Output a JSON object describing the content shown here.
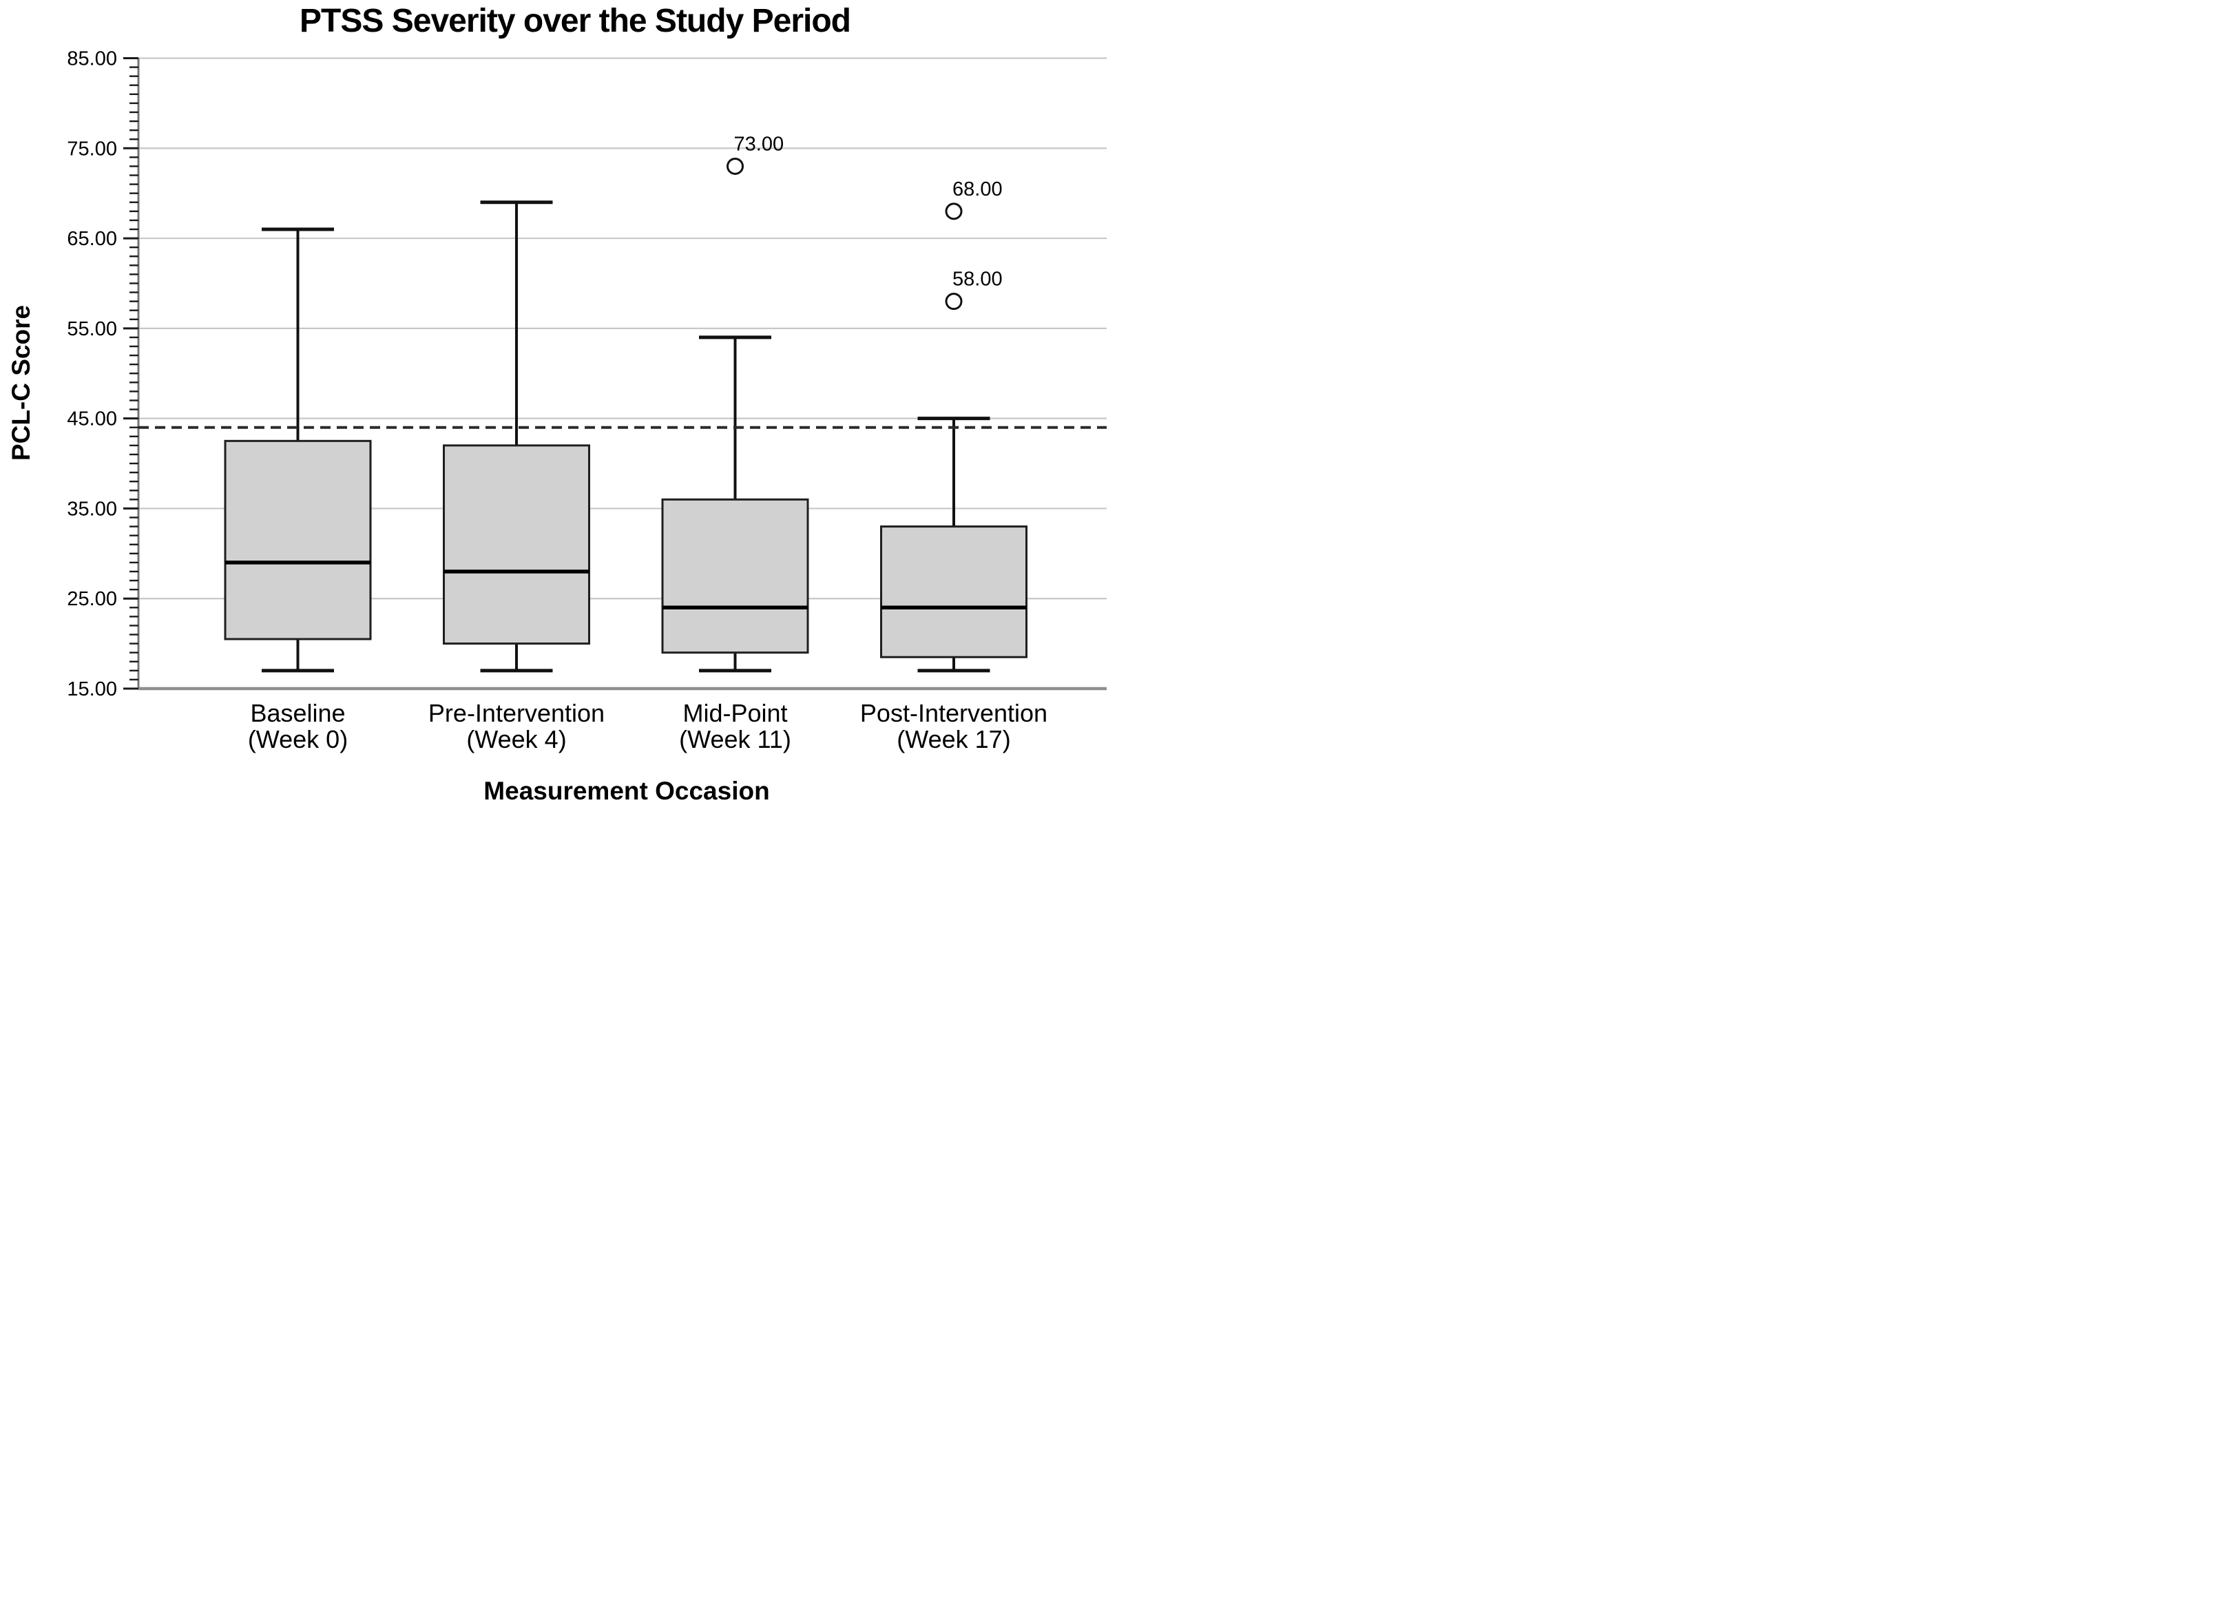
{
  "chart_data": {
    "type": "box",
    "title": "PTSS Severity over the Study Period",
    "xlabel": "Measurement Occasion",
    "ylabel": "PCL-C Score",
    "ylim": [
      15,
      85
    ],
    "y_major_step": 10,
    "y_minor_step": 1,
    "y_tick_labels": [
      "15.00",
      "25.00",
      "35.00",
      "45.00",
      "55.00",
      "65.00",
      "75.00",
      "85.00"
    ],
    "grid": "horizontal-major-gridlines",
    "legend": "none",
    "reference_line": {
      "value": 44,
      "style": "dashed"
    },
    "categories": [
      {
        "label_line1": "Baseline",
        "label_line2": "(Week 0)"
      },
      {
        "label_line1": "Pre-Intervention",
        "label_line2": "(Week 4)"
      },
      {
        "label_line1": "Mid-Point",
        "label_line2": "(Week 11)"
      },
      {
        "label_line1": "Post-Intervention",
        "label_line2": "(Week 17)"
      }
    ],
    "boxes": [
      {
        "category": "Baseline (Week 0)",
        "whisker_low": 17,
        "q1": 20.5,
        "median": 29,
        "q3": 42.5,
        "whisker_high": 66,
        "outliers": []
      },
      {
        "category": "Pre-Intervention (Week 4)",
        "whisker_low": 17,
        "q1": 20,
        "median": 28,
        "q3": 42,
        "whisker_high": 69,
        "outliers": []
      },
      {
        "category": "Mid-Point (Week 11)",
        "whisker_low": 17,
        "q1": 19,
        "median": 24,
        "q3": 36,
        "whisker_high": 54,
        "outliers": [
          {
            "value": 73,
            "label": "73.00"
          }
        ]
      },
      {
        "category": "Post-Intervention (Week 17)",
        "whisker_low": 17,
        "q1": 18.5,
        "median": 24,
        "q3": 33,
        "whisker_high": 45,
        "outliers": [
          {
            "value": 68,
            "label": "68.00"
          },
          {
            "value": 58,
            "label": "58.00"
          }
        ]
      }
    ],
    "colors": {
      "box_fill": "#d1d1d1",
      "box_stroke": "#1f1f1f",
      "median_line": "#000000",
      "whisker": "#111111",
      "gridline": "#c7c7c7",
      "y_axis_line": "#757575",
      "x_axis_line": "#8e8e8e",
      "tick": "#1a1a1a",
      "reference_line": "#2b2b2b",
      "outlier_stroke": "#111111",
      "text": "#000000"
    }
  }
}
